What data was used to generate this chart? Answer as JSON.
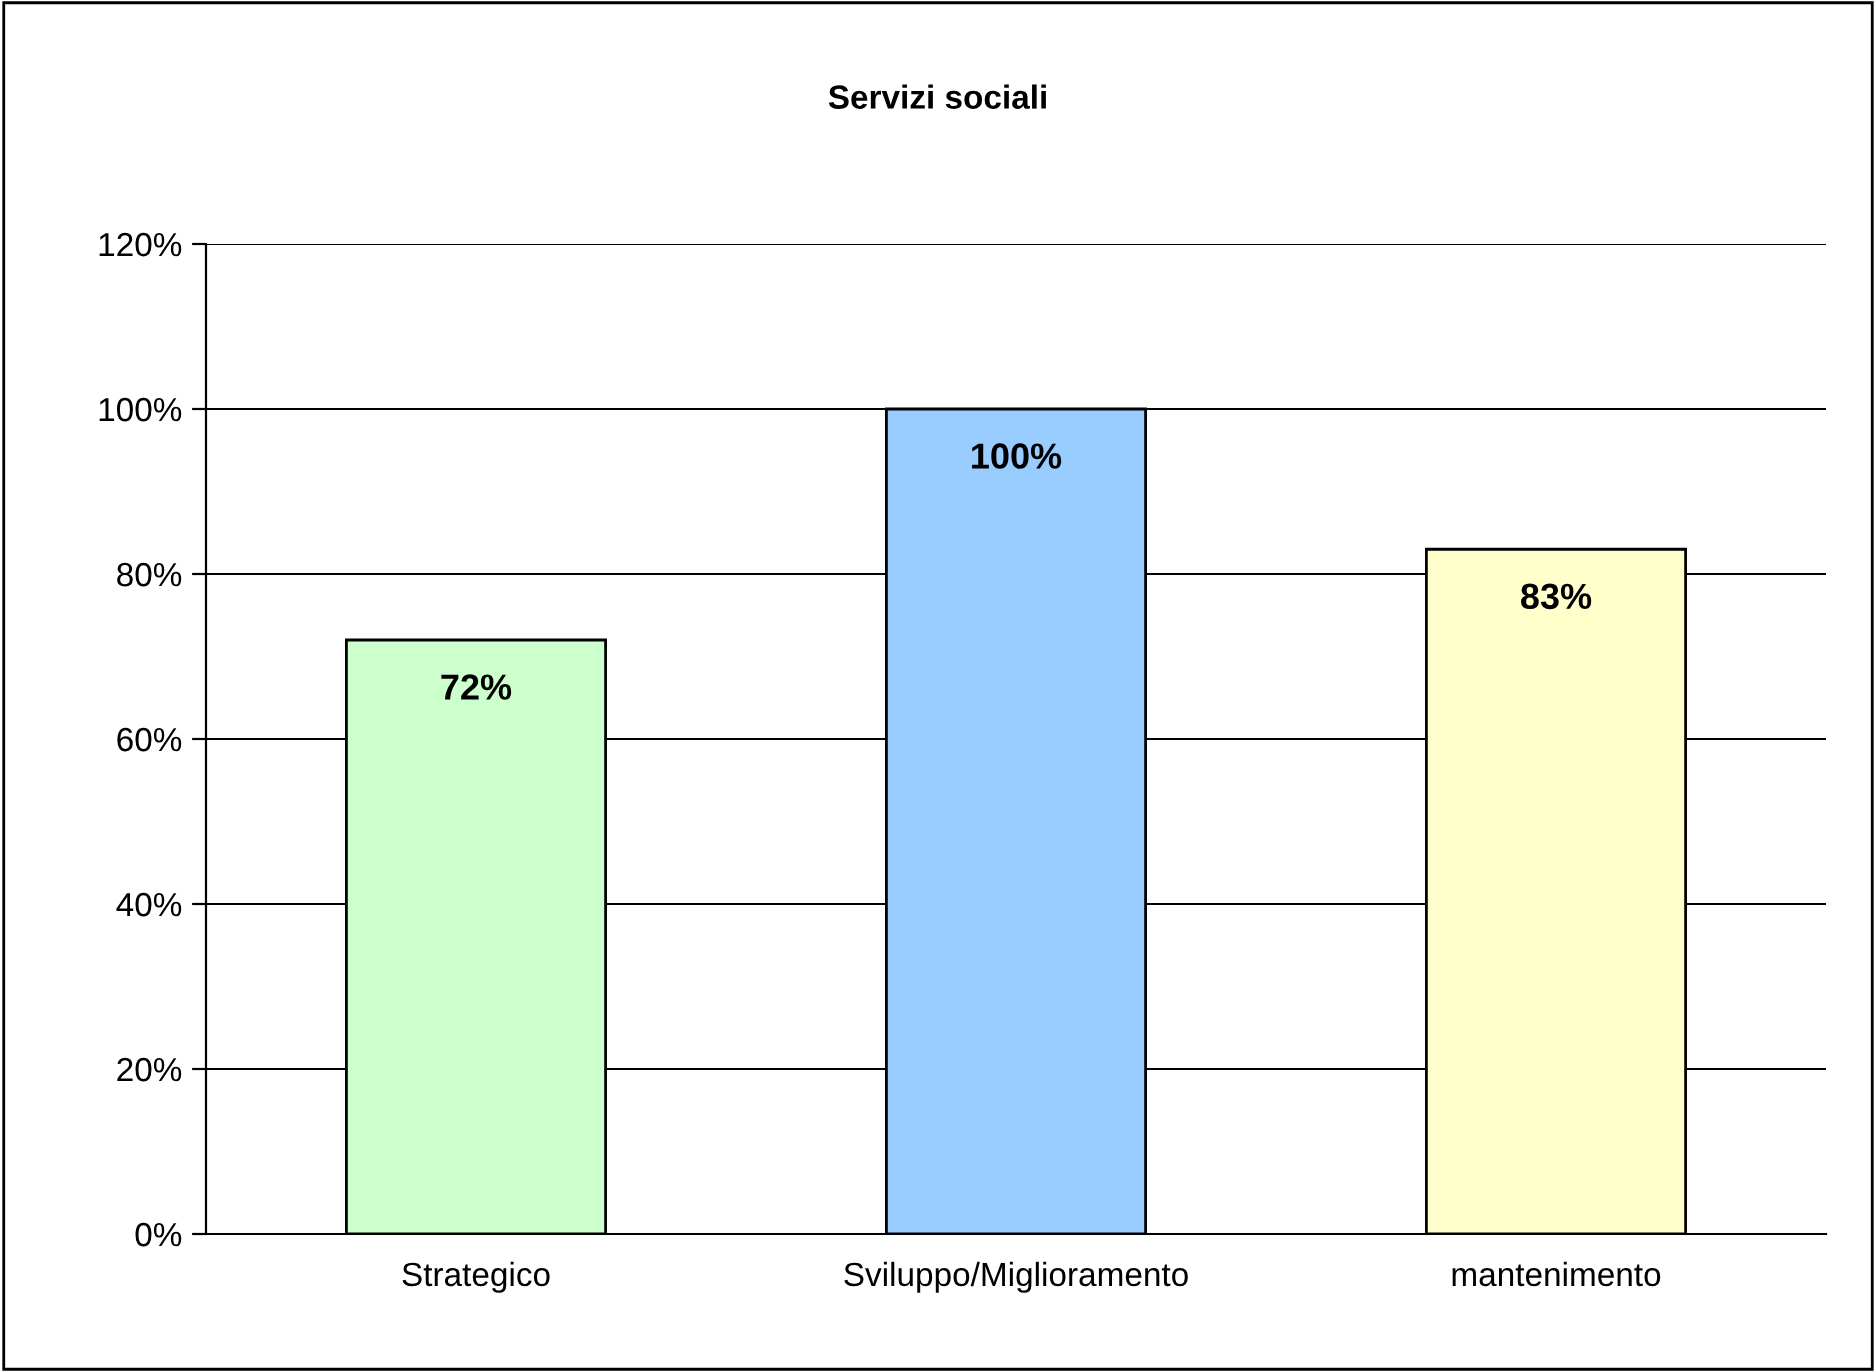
{
  "chart_data": {
    "type": "bar",
    "title": "Servizi sociali",
    "categories": [
      "Strategico",
      "Sviluppo/Miglioramento",
      "mantenimento"
    ],
    "values": [
      72,
      100,
      83
    ],
    "colors": [
      "#ccffcc",
      "#99ccff",
      "#ffffcc"
    ],
    "value_labels": [
      "72%",
      "100%",
      "83%"
    ],
    "ylim": [
      0,
      120
    ],
    "yticks": [
      {
        "value": 0,
        "label": "0%"
      },
      {
        "value": 20,
        "label": "20%"
      },
      {
        "value": 40,
        "label": "40%"
      },
      {
        "value": 60,
        "label": "60%"
      },
      {
        "value": 80,
        "label": "80%"
      },
      {
        "value": 100,
        "label": "100%"
      },
      {
        "value": 120,
        "label": "120%"
      }
    ],
    "grid": "y",
    "legend": false
  }
}
